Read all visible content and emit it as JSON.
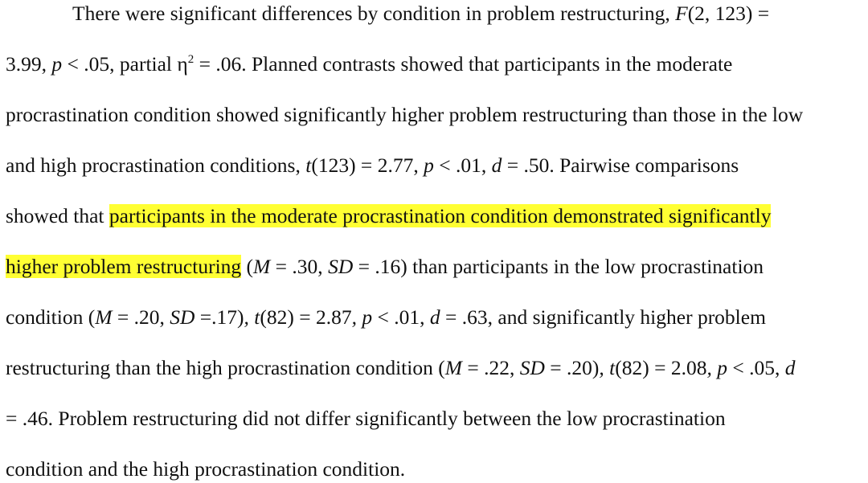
{
  "paragraph": {
    "l1_a": "There were significant differences by condition in problem restructuring, ",
    "l1_F": "F",
    "l1_b": "(2, 123) =",
    "l2_a": "3.99, ",
    "l2_p": "p",
    "l2_b": " < .05, partial η",
    "l2_sup": "2",
    "l2_c": " = .06. Planned contrasts showed that participants in the moderate",
    "l3": "procrastination condition showed significantly higher problem restructuring than those in the low",
    "l4_a": "and high procrastination conditions, ",
    "l4_t": "t",
    "l4_b": "(123) = 2.77, ",
    "l4_p": "p",
    "l4_c": " < .01, ",
    "l4_d": "d",
    "l4_e": " = .50. Pairwise comparisons",
    "l5_a": "showed that ",
    "l5_hl": "participants in the moderate procrastination condition demonstrated significantly",
    "l6_hl": "higher problem restructuring",
    "l6_a": " (",
    "l6_M": "M",
    "l6_b": " = .30, ",
    "l6_SD": "SD",
    "l6_c": " = .16) than participants in the low procrastination",
    "l7_a": "condition (",
    "l7_M": "M",
    "l7_b": " = .20, ",
    "l7_SD": "SD",
    "l7_c": " =.17)",
    "l7_comma": ", ",
    "l7_t": "t",
    "l7_d": "(82) = 2.87",
    "l7_comma2": ", ",
    "l7_p": "p",
    "l7_e": " < .01, ",
    "l7_dd": "d",
    "l7_f": " = .63, and significantly higher problem",
    "l8_a": "restructuring than the high procrastination condition (",
    "l8_M": "M",
    "l8_b": " = .22, ",
    "l8_SD": "SD",
    "l8_c": " = .20)",
    "l8_comma": ", ",
    "l8_t": "t",
    "l8_d": "(82) = 2.08",
    "l8_comma2": ", ",
    "l8_p": "p",
    "l8_e": " < .05, ",
    "l8_dd": "d",
    "l9": "= .46. Problem restructuring did not differ significantly between the low procrastination",
    "l10": "condition and the high procrastination condition."
  },
  "highlight_color": "#ffff33"
}
